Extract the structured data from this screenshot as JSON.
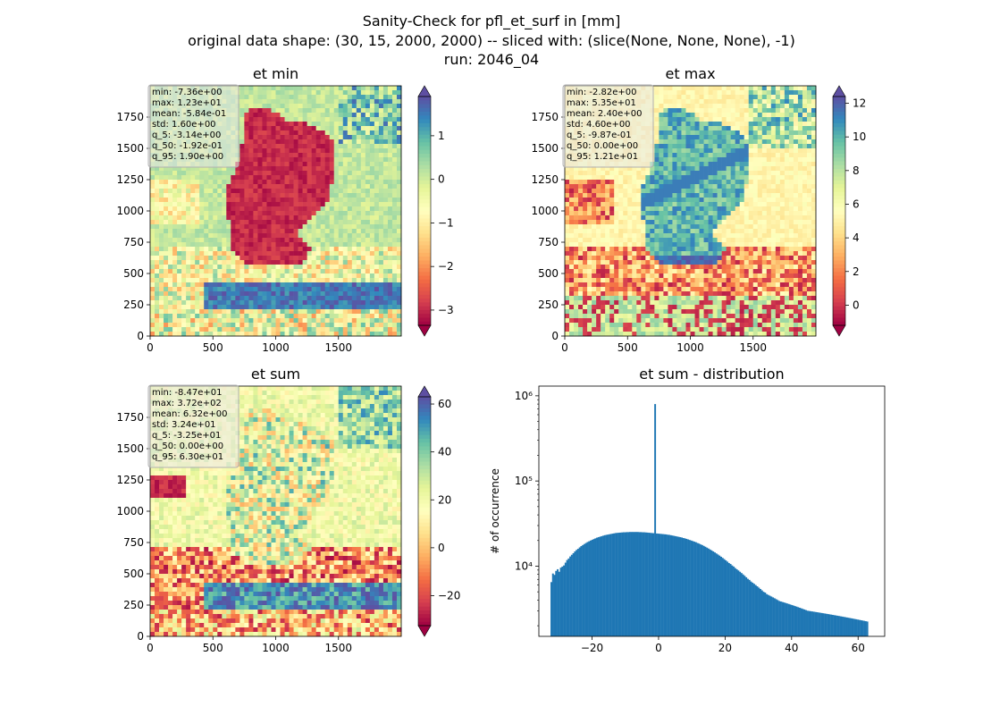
{
  "figure": {
    "title_lines": [
      "Sanity-Check for pfl_et_surf in [mm]",
      "original data shape: (30, 15, 2000, 2000) -- sliced with: (slice(None, None, None), -1)",
      "run: 2046_04"
    ]
  },
  "chart_data": [
    {
      "type": "heatmap",
      "title": "et min",
      "colormap": "Spectral",
      "xlim": [
        0,
        2000
      ],
      "ylim": [
        0,
        2000
      ],
      "x_ticks": [
        "0",
        "500",
        "1000",
        "1500"
      ],
      "y_ticks": [
        "0",
        "250",
        "500",
        "750",
        "1000",
        "1250",
        "1500",
        "1750"
      ],
      "colorbar": {
        "range": [
          -3.35,
          1.9
        ],
        "ticks": [
          "1",
          "0",
          "−1",
          "−2",
          "−3"
        ],
        "tick_values": [
          1,
          0,
          -1,
          -2,
          -3
        ],
        "extend": "both"
      },
      "stats": [
        "min: -7.36e+00",
        "max: 1.23e+01",
        "mean: -5.84e-01",
        "std: 1.60e+00",
        "q_5: -3.14e+00",
        "q_50: -1.92e-01",
        "q_95: 1.90e+00"
      ]
    },
    {
      "type": "heatmap",
      "title": "et max",
      "colormap": "Spectral",
      "xlim": [
        0,
        2000
      ],
      "ylim": [
        0,
        2000
      ],
      "x_ticks": [
        "0",
        "500",
        "1000",
        "1500"
      ],
      "y_ticks": [
        "0",
        "250",
        "500",
        "750",
        "1000",
        "1250",
        "1500",
        "1750"
      ],
      "colorbar": {
        "range": [
          -1.2,
          12.4
        ],
        "ticks": [
          "12",
          "10",
          "8",
          "6",
          "4",
          "2",
          "0"
        ],
        "tick_values": [
          12,
          10,
          8,
          6,
          4,
          2,
          0
        ],
        "extend": "both"
      },
      "stats": [
        "min: -2.82e+00",
        "max: 5.35e+01",
        "mean: 2.40e+00",
        "std: 4.60e+00",
        "q_5: -9.87e-01",
        "q_50: 0.00e+00",
        "q_95: 1.21e+01"
      ]
    },
    {
      "type": "heatmap",
      "title": "et sum",
      "colormap": "Spectral",
      "xlim": [
        0,
        2000
      ],
      "ylim": [
        0,
        2000
      ],
      "x_ticks": [
        "0",
        "500",
        "1000",
        "1500"
      ],
      "y_ticks": [
        "0",
        "250",
        "500",
        "750",
        "1000",
        "1250",
        "1500",
        "1750"
      ],
      "colorbar": {
        "range": [
          -32.5,
          63
        ],
        "ticks": [
          "60",
          "40",
          "20",
          "0",
          "−20"
        ],
        "tick_values": [
          60,
          40,
          20,
          0,
          -20
        ],
        "extend": "both"
      },
      "stats": [
        "min: -8.47e+01",
        "max: 3.72e+02",
        "mean: 6.32e+00",
        "std: 3.24e+01",
        "q_5: -3.25e+01",
        "q_50: 0.00e+00",
        "q_95: 6.30e+01"
      ]
    },
    {
      "type": "bar",
      "title": "et sum - distribution",
      "ylabel": "# of occurrence",
      "xlabel": "",
      "yscale": "log",
      "xlim": [
        -36,
        68
      ],
      "ylim": [
        1500,
        1300000
      ],
      "x_ticks": [
        "−20",
        "0",
        "20",
        "40",
        "60"
      ],
      "x_tick_values": [
        -20,
        0,
        20,
        40,
        60
      ],
      "y_ticks": [
        "10⁴",
        "10⁵",
        "10⁶"
      ],
      "y_tick_values": [
        10000,
        100000,
        1000000
      ],
      "color": "#1f77b4",
      "bins": {
        "start": -32.5,
        "end": 63,
        "count": 200
      },
      "values": [
        6500,
        8200,
        7900,
        8800,
        9200,
        8600,
        9600,
        9900,
        10200,
        11000,
        11800,
        12300,
        13000,
        13600,
        14200,
        14900,
        15500,
        16000,
        16600,
        17200,
        17700,
        18200,
        18700,
        19200,
        19600,
        20000,
        20400,
        20800,
        21200,
        21600,
        21900,
        22200,
        22500,
        22800,
        23100,
        23300,
        23500,
        23700,
        23900,
        24100,
        24300,
        24500,
        24600,
        24700,
        24800,
        24900,
        25000,
        25000,
        25100,
        25100,
        25200,
        25200,
        25200,
        25200,
        25200,
        25200,
        25100,
        25100,
        25000,
        25000,
        24900,
        24800,
        24700,
        24600,
        24500,
        24400,
        800000,
        24200,
        24100,
        24000,
        23900,
        23800,
        23700,
        23600,
        23400,
        23300,
        23100,
        22900,
        22700,
        22500,
        22300,
        22100,
        21900,
        21700,
        21400,
        21200,
        20900,
        20600,
        20300,
        20000,
        19700,
        19400,
        19100,
        18700,
        18400,
        18000,
        17700,
        17300,
        16900,
        16500,
        16100,
        15700,
        15300,
        14900,
        14500,
        14100,
        13700,
        13300,
        12900,
        12500,
        12100,
        11700,
        11300,
        10900,
        10600,
        10200,
        9900,
        9500,
        9200,
        8900,
        8600,
        8300,
        8000,
        7700,
        7400,
        7100,
        6900,
        6600,
        6400,
        6200,
        6000,
        5800,
        5600,
        5400,
        5200,
        5000,
        4900,
        4700,
        4600,
        4500,
        4400,
        4300,
        4200,
        4100,
        4000,
        3900,
        3850,
        3800,
        3750,
        3700,
        3650,
        3600,
        3550,
        3500,
        3450,
        3400,
        3350,
        3300,
        3250,
        3200,
        3150,
        3100,
        3050,
        3000,
        2980,
        2960,
        2940,
        2920,
        2900,
        2880,
        2860,
        2840,
        2820,
        2800,
        2780,
        2760,
        2740,
        2720,
        2700,
        2680,
        2660,
        2640,
        2620,
        2600,
        2580,
        2560,
        2540,
        2520,
        2500,
        2480,
        2460,
        2440,
        2420,
        2400,
        2380,
        2360,
        2340,
        2320,
        2300,
        2280,
        2260,
        2240
      ]
    }
  ]
}
